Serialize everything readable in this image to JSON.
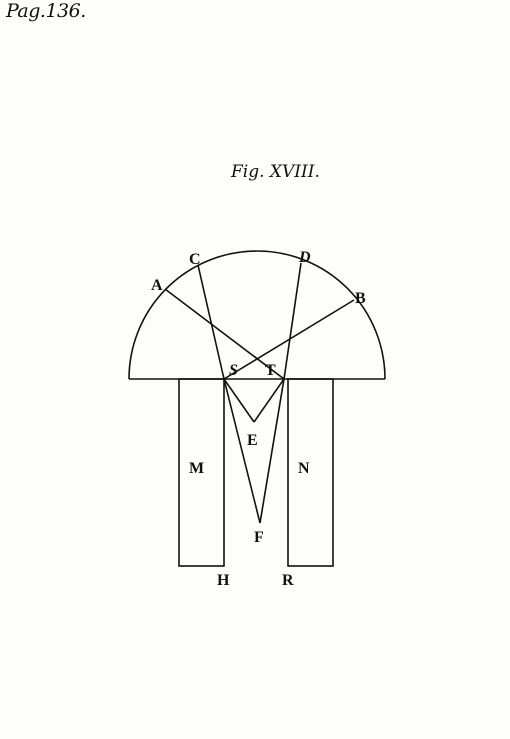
{
  "page": {
    "page_label": "Pag.136.",
    "figure_title": "Fig. XVIII."
  },
  "diagram": {
    "labels": {
      "A": "A",
      "B": "B",
      "C": "C",
      "D": "D",
      "S": "S",
      "T": "T",
      "E": "E",
      "F": "F",
      "M": "M",
      "N": "N",
      "H": "H",
      "R": "R"
    }
  },
  "colors": {
    "ink": "#111111",
    "paper": "#fdfdfc"
  }
}
